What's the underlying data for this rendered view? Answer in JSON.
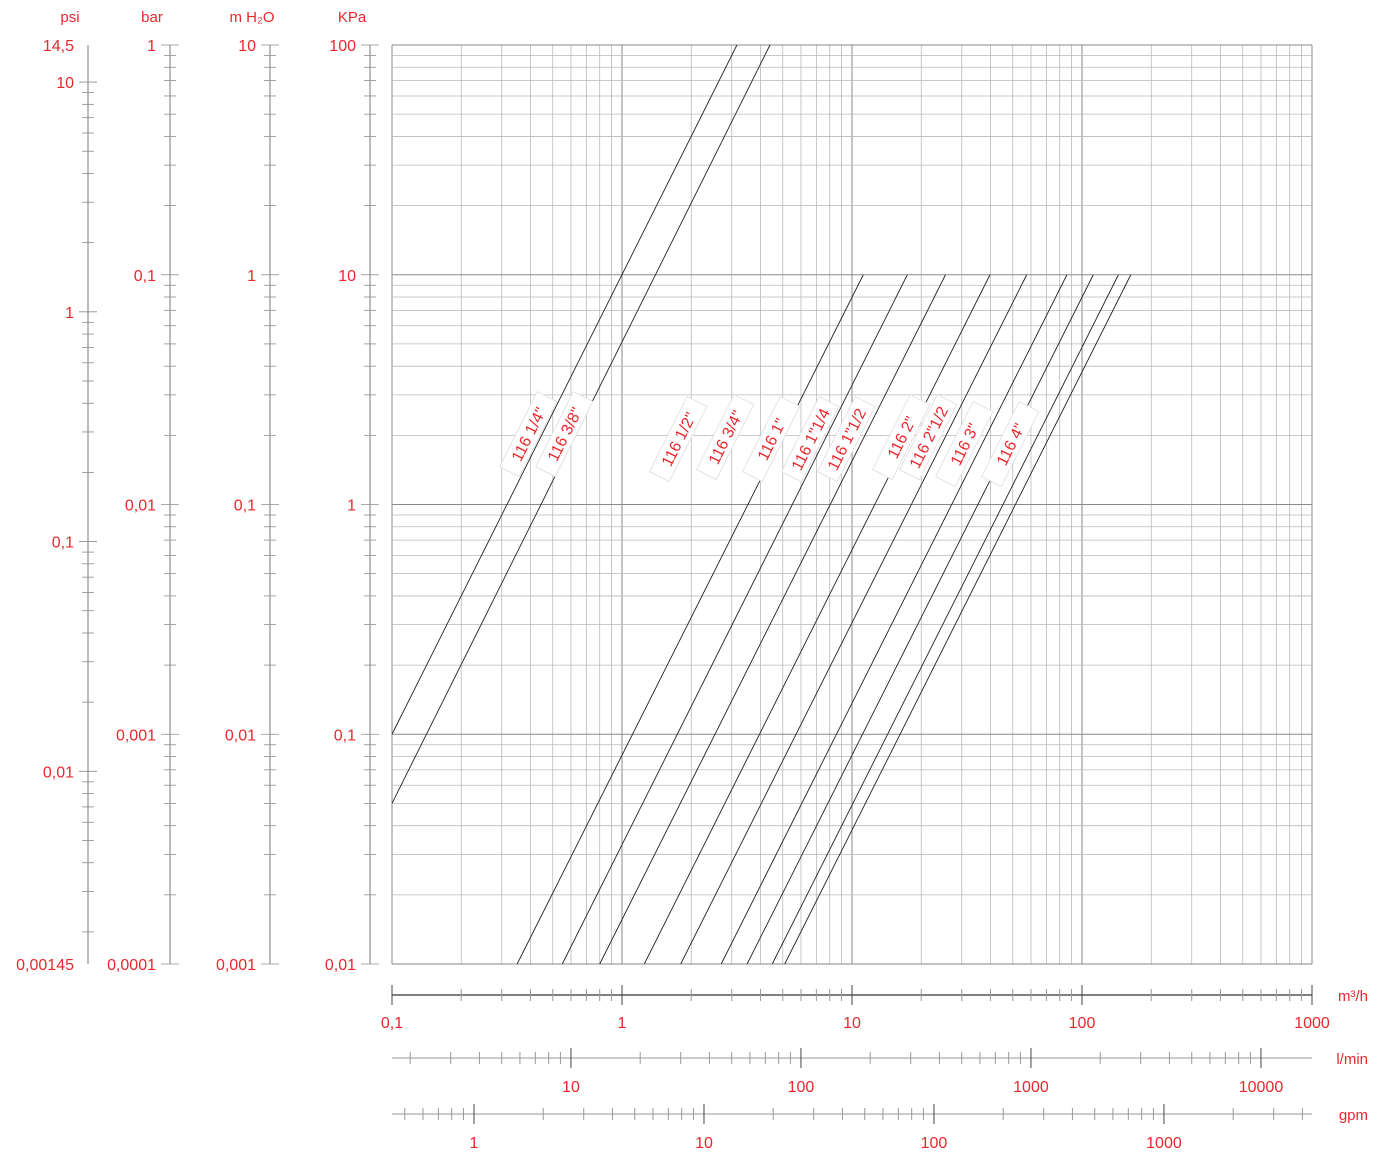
{
  "chart_data": {
    "type": "line",
    "x_scale": "log",
    "y_scale": "log",
    "x_unit": "m³/h",
    "y_unit": "KPa",
    "xlim": [
      0.1,
      1000
    ],
    "ylim": [
      0.01,
      100
    ],
    "grid": true,
    "left_axes": [
      {
        "header": "psi",
        "range": [
          0.00145,
          14.5
        ],
        "labels": [
          {
            "v": 14.5,
            "t": "14,5"
          },
          {
            "v": 10,
            "t": "10"
          },
          {
            "v": 1,
            "t": "1"
          },
          {
            "v": 0.1,
            "t": "0,1"
          },
          {
            "v": 0.01,
            "t": "0,01"
          },
          {
            "v": 0.00145,
            "t": "0,00145"
          }
        ]
      },
      {
        "header": "bar",
        "range": [
          0.0001,
          1
        ],
        "labels": [
          {
            "v": 1,
            "t": "1"
          },
          {
            "v": 0.1,
            "t": "0,1"
          },
          {
            "v": 0.01,
            "t": "0,01"
          },
          {
            "v": 0.001,
            "t": "0,001"
          },
          {
            "v": 0.0001,
            "t": "0,0001"
          }
        ]
      },
      {
        "header": "m H₂O",
        "range": [
          0.001,
          10
        ],
        "labels": [
          {
            "v": 10,
            "t": "10"
          },
          {
            "v": 1,
            "t": "1"
          },
          {
            "v": 0.1,
            "t": "0,1"
          },
          {
            "v": 0.01,
            "t": "0,01"
          },
          {
            "v": 0.001,
            "t": "0,001"
          }
        ]
      },
      {
        "header": "KPa",
        "range": [
          0.01,
          100
        ],
        "labels": [
          {
            "v": 100,
            "t": "100"
          },
          {
            "v": 10,
            "t": "10"
          },
          {
            "v": 1,
            "t": "1"
          },
          {
            "v": 0.1,
            "t": "0,1"
          },
          {
            "v": 0.01,
            "t": "0,01"
          }
        ]
      }
    ],
    "bottom_axes": [
      {
        "unit": "m³/h",
        "range": [
          0.1,
          1000
        ],
        "labels": [
          {
            "v": 0.1,
            "t": "0,1"
          },
          {
            "v": 1,
            "t": "1"
          },
          {
            "v": 10,
            "t": "10"
          },
          {
            "v": 100,
            "t": "100"
          },
          {
            "v": 1000,
            "t": "1000"
          }
        ]
      },
      {
        "unit": "l/min",
        "range": [
          1.667,
          16667
        ],
        "labels": [
          {
            "v": 10,
            "t": "10"
          },
          {
            "v": 100,
            "t": "100"
          },
          {
            "v": 1000,
            "t": "1000"
          },
          {
            "v": 10000,
            "t": "10000"
          }
        ]
      },
      {
        "unit": "gpm",
        "range": [
          0.44,
          4403
        ],
        "labels": [
          {
            "v": 1,
            "t": "1"
          },
          {
            "v": 10,
            "t": "10"
          },
          {
            "v": 100,
            "t": "100"
          },
          {
            "v": 1000,
            "t": "1000"
          }
        ]
      }
    ],
    "series": [
      {
        "name": "116 1/4\"",
        "x": [
          0.1,
          3.16
        ],
        "y": [
          0.1,
          100
        ]
      },
      {
        "name": "116 3/8\"",
        "x": [
          0.1,
          4.4
        ],
        "y": [
          0.05,
          100
        ]
      },
      {
        "name": "116 1/2\"",
        "x": [
          0.35,
          11.2
        ],
        "y": [
          0.01,
          10
        ]
      },
      {
        "name": "116 3/4\"",
        "x": [
          0.55,
          17.4
        ],
        "y": [
          0.01,
          10
        ]
      },
      {
        "name": "116 1\"",
        "x": [
          0.8,
          25.5
        ],
        "y": [
          0.01,
          10
        ]
      },
      {
        "name": "116 1\"1/4",
        "x": [
          1.25,
          39.8
        ],
        "y": [
          0.01,
          10
        ]
      },
      {
        "name": "116 1\"1/2",
        "x": [
          1.8,
          57.5
        ],
        "y": [
          0.01,
          10
        ]
      },
      {
        "name": "116 2\"",
        "x": [
          2.7,
          86
        ],
        "y": [
          0.01,
          10
        ]
      },
      {
        "name": "116 2\"1/2",
        "x": [
          3.5,
          112
        ],
        "y": [
          0.01,
          10
        ]
      },
      {
        "name": "116 3\"",
        "x": [
          4.5,
          144
        ],
        "y": [
          0.01,
          10
        ]
      },
      {
        "name": "116 4\"",
        "x": [
          5.1,
          163
        ],
        "y": [
          0.01,
          10
        ]
      }
    ]
  }
}
